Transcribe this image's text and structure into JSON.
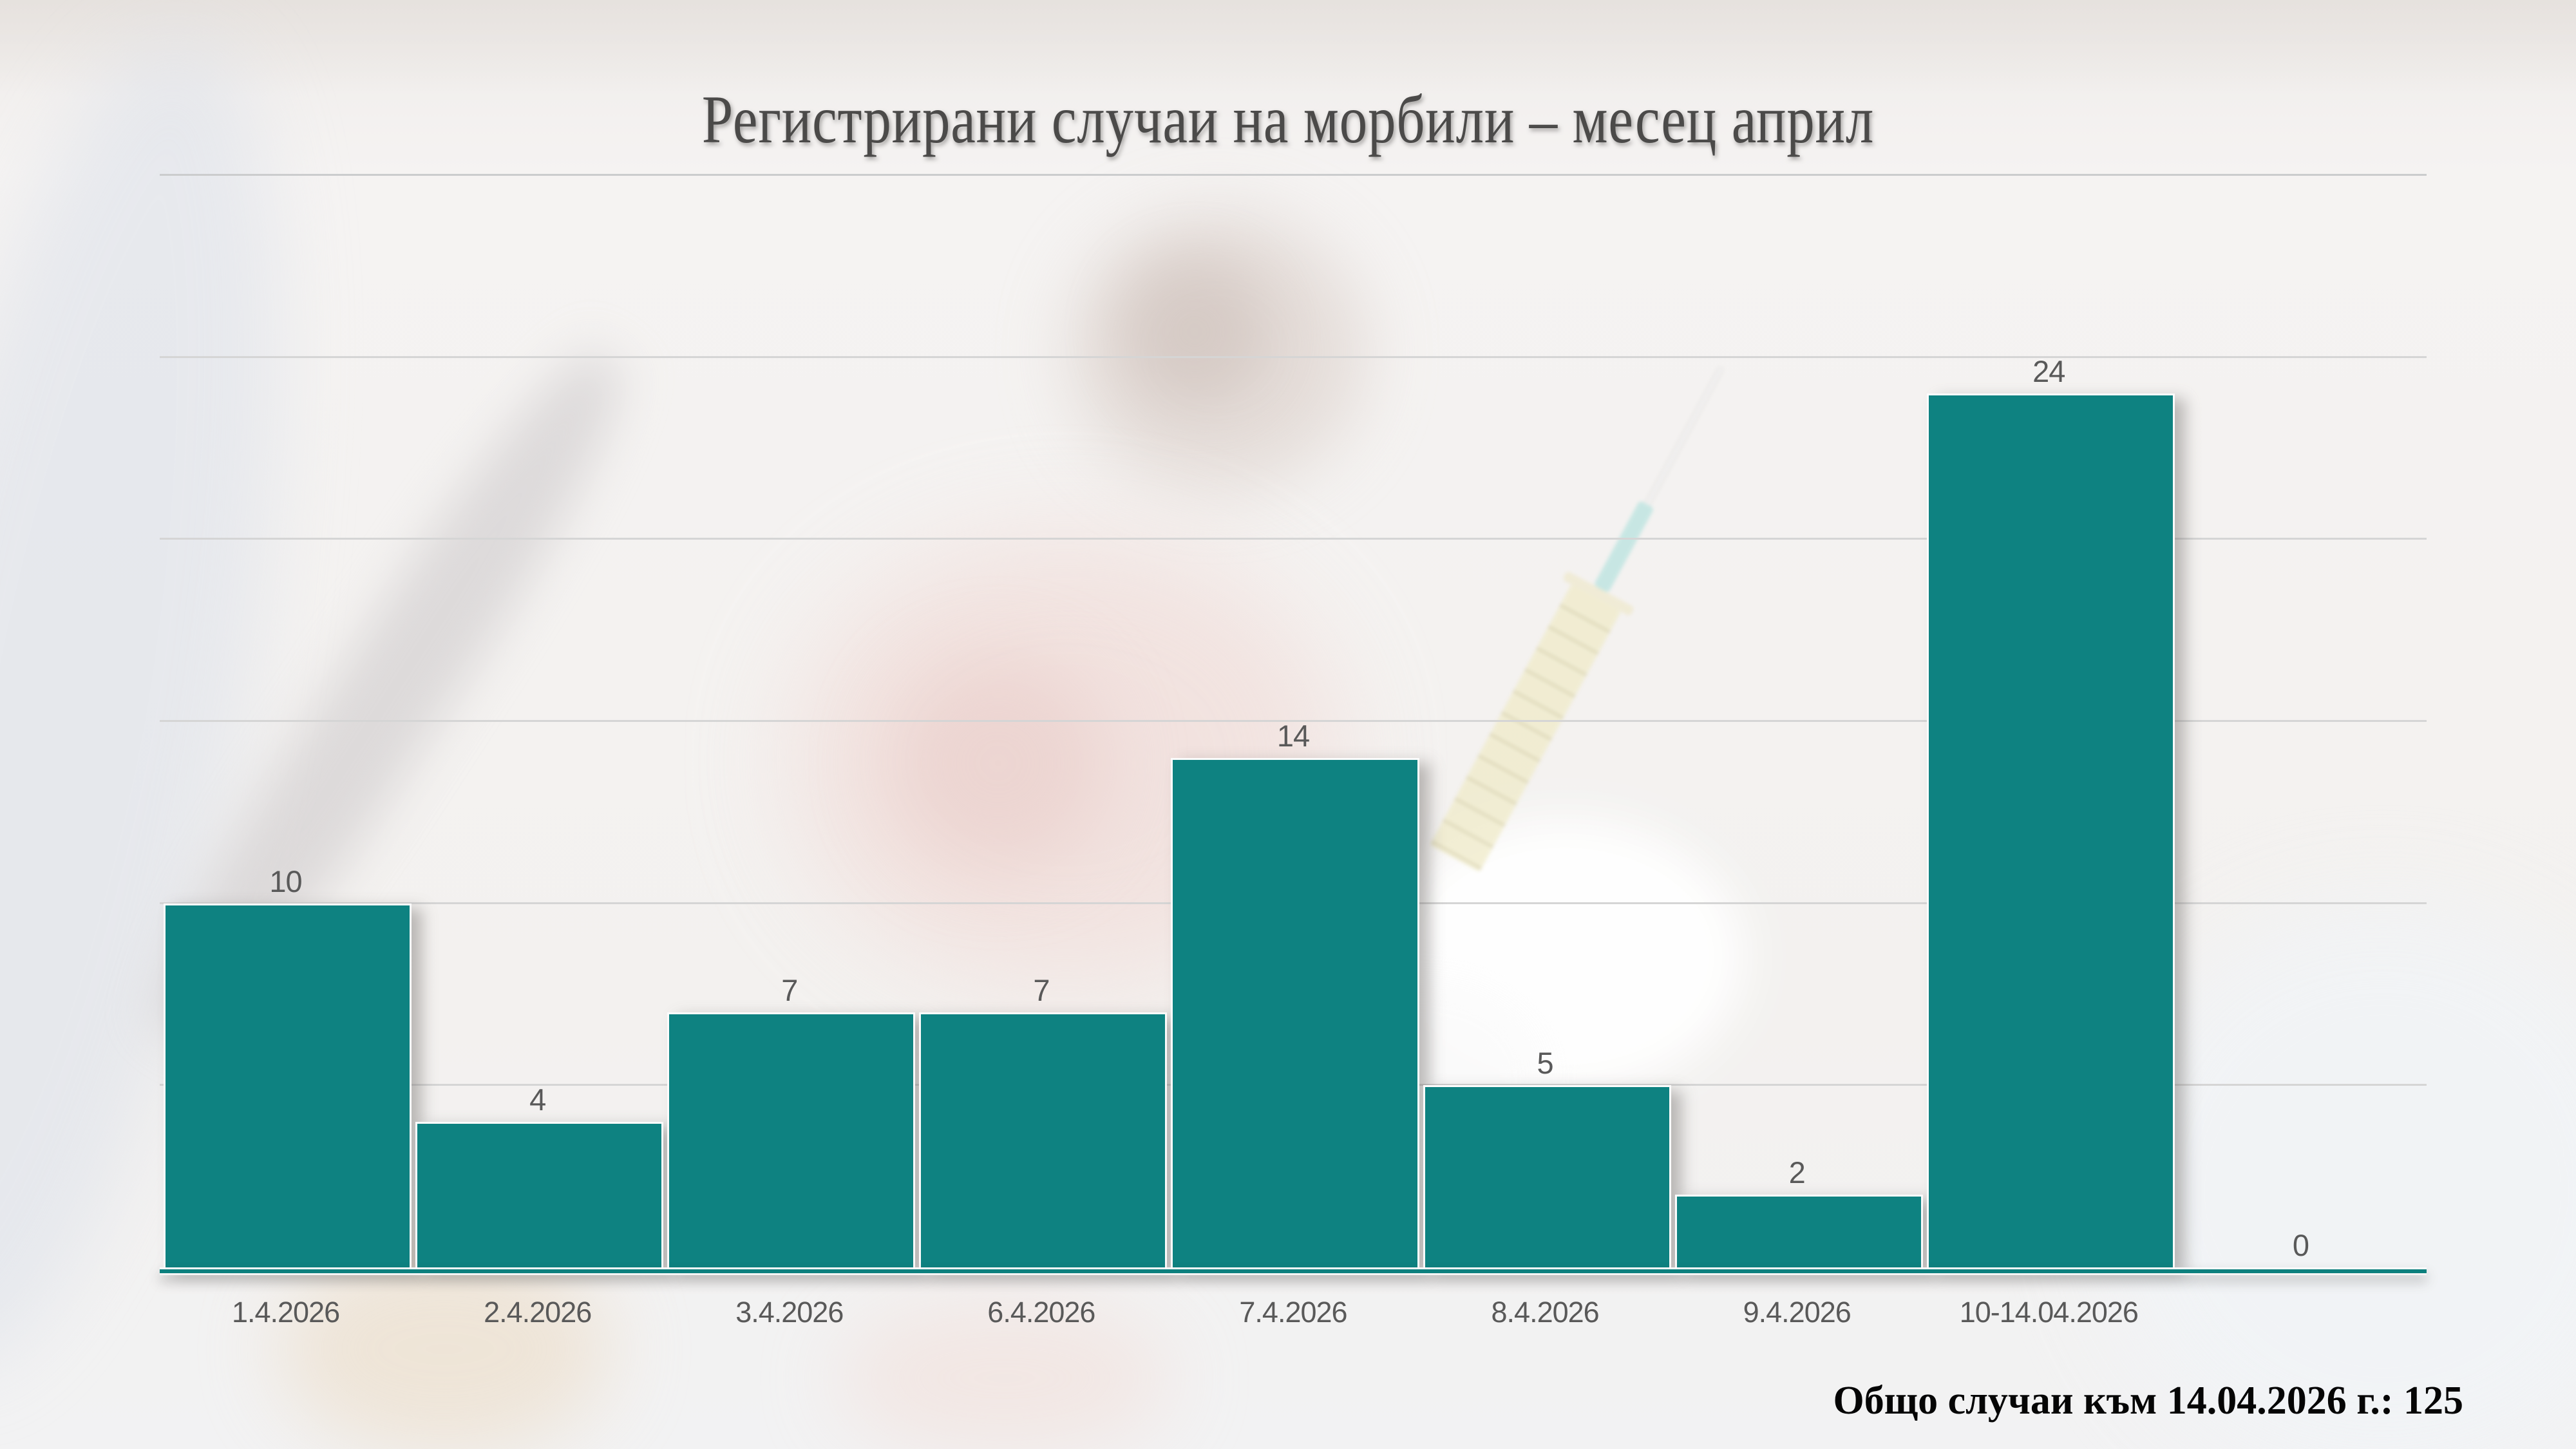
{
  "title": "Регистрирани случаи на морбили – месец април",
  "total_note": "Общо случаи към 14.04.2026 г.: 125",
  "colors": {
    "bar_fill": "#0E8281",
    "axis_line": "#0D807E",
    "gridline": "#D5D5D5",
    "data_label": "#595959",
    "axis_label": "#595959",
    "title_text": "#4B4A49",
    "total_text": "#050505",
    "background": "#F3F1EF"
  },
  "background_photo": {
    "description": "heavily faded photo of a child receiving a vaccination",
    "elements": [
      "syringe",
      "needle",
      "white-glove",
      "child-head"
    ]
  },
  "chart_data": {
    "type": "bar",
    "title": "Регистрирани случаи на морбили – месец април",
    "categories": [
      "1.4.2026",
      "2.4.2026",
      "3.4.2026",
      "6.4.2026",
      "7.4.2026",
      "8.4.2026",
      "9.4.2026",
      "10-14.04.2026",
      ""
    ],
    "values": [
      10,
      4,
      7,
      7,
      14,
      5,
      2,
      24,
      0
    ],
    "xlabel": "",
    "ylabel": "",
    "ylim": [
      0,
      30
    ],
    "gridline_step": 5,
    "grid": "horizontal",
    "legend": "none",
    "data_labels": true,
    "annotation": "Общо случаи към 14.04.2026 г.: 125"
  }
}
